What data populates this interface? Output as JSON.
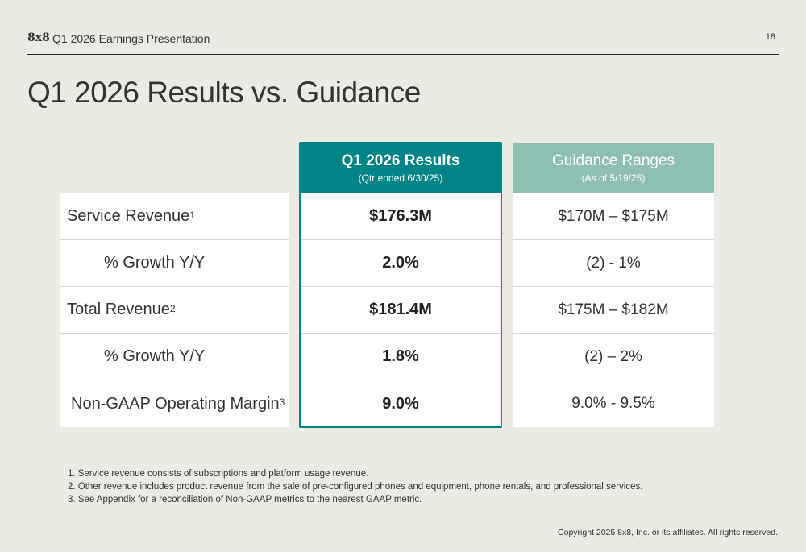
{
  "header": {
    "logo": "8x8",
    "deck_title": "Q1 2026 Earnings Presentation",
    "page_number": "18"
  },
  "title": "Q1 2026 Results vs. Guidance",
  "table": {
    "results_header": {
      "title": "Q1 2026 Results",
      "subtitle": "(Qtr ended 6/30/25)"
    },
    "guidance_header": {
      "title": "Guidance Ranges",
      "subtitle": "(As of 5/19/25)"
    },
    "rows": [
      {
        "label": "Service Revenue",
        "note": "1",
        "result": "$176.3M",
        "guidance": "$170M – $175M"
      },
      {
        "label": "% Growth Y/Y",
        "note": "",
        "result": "2.0%",
        "guidance": "(2) - 1%"
      },
      {
        "label": "Total Revenue",
        "note": "2",
        "result": "$181.4M",
        "guidance": "$175M – $182M"
      },
      {
        "label": "% Growth Y/Y",
        "note": "",
        "result": "1.8%",
        "guidance": "(2) – 2%"
      },
      {
        "label": "Non-GAAP Operating Margin",
        "note": "3",
        "result": "9.0%",
        "guidance": "9.0% - 9.5%"
      }
    ]
  },
  "footnotes": [
    "1. Service revenue consists of subscriptions and platform usage revenue.",
    "2. Other revenue includes product revenue from the sale of pre-configured phones and equipment, phone rentals, and professional services.",
    "3. See Appendix for a reconciliation of Non-GAAP metrics to the nearest GAAP metric."
  ],
  "copyright": "Copyright 2025 8x8, Inc. or its affiliates. All rights reserved."
}
